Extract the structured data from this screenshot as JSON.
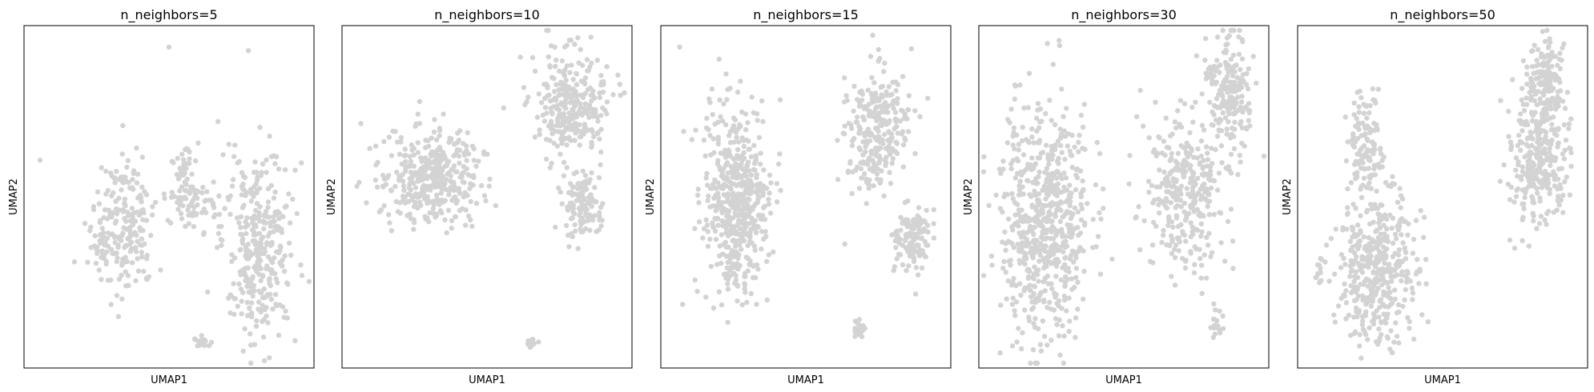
{
  "chart_data": [
    {
      "type": "scatter",
      "title": "n_neighbors=5",
      "xlabel": "UMAP1",
      "ylabel": "UMAP2",
      "xticks": [],
      "yticks": [],
      "point_color": "#d3d3d3",
      "clusters": [
        {
          "center": [
            0.35,
            0.58
          ],
          "spread": [
            0.06,
            0.14
          ],
          "n": 170
        },
        {
          "center": [
            0.26,
            0.64
          ],
          "spread": [
            0.035,
            0.06
          ],
          "n": 40
        },
        {
          "center": [
            0.58,
            0.52
          ],
          "spread": [
            0.06,
            0.05
          ],
          "n": 80
        },
        {
          "center": [
            0.55,
            0.4
          ],
          "spread": [
            0.03,
            0.03
          ],
          "n": 25
        },
        {
          "center": [
            0.82,
            0.64
          ],
          "spread": [
            0.08,
            0.18
          ],
          "n": 330
        },
        {
          "center": [
            0.62,
            0.94
          ],
          "spread": [
            0.025,
            0.01
          ],
          "n": 18
        }
      ],
      "outliers": [
        [
          0.04,
          0.39
        ],
        [
          0.5,
          0.05
        ],
        [
          0.2,
          0.58
        ],
        [
          0.47,
          0.72
        ],
        [
          0.95,
          0.42
        ]
      ]
    },
    {
      "type": "scatter",
      "title": "n_neighbors=10",
      "xlabel": "UMAP1",
      "ylabel": "UMAP2",
      "xticks": [],
      "yticks": [],
      "point_color": "#d3d3d3",
      "clusters": [
        {
          "center": [
            0.3,
            0.44
          ],
          "spread": [
            0.11,
            0.09
          ],
          "n": 380
        },
        {
          "center": [
            0.8,
            0.22
          ],
          "spread": [
            0.08,
            0.1
          ],
          "n": 300
        },
        {
          "center": [
            0.84,
            0.53
          ],
          "spread": [
            0.04,
            0.06
          ],
          "n": 110
        },
        {
          "center": [
            0.66,
            0.94
          ],
          "spread": [
            0.02,
            0.01
          ],
          "n": 14
        }
      ],
      "outliers": [
        [
          0.05,
          0.28
        ]
      ]
    },
    {
      "type": "scatter",
      "title": "n_neighbors=15",
      "xlabel": "UMAP1",
      "ylabel": "UMAP2",
      "xticks": [],
      "yticks": [],
      "point_color": "#d3d3d3",
      "clusters": [
        {
          "center": [
            0.25,
            0.52
          ],
          "spread": [
            0.07,
            0.18
          ],
          "n": 520
        },
        {
          "center": [
            0.75,
            0.3
          ],
          "spread": [
            0.07,
            0.12
          ],
          "n": 260
        },
        {
          "center": [
            0.88,
            0.62
          ],
          "spread": [
            0.04,
            0.06
          ],
          "n": 120
        },
        {
          "center": [
            0.69,
            0.91
          ],
          "spread": [
            0.012,
            0.04
          ],
          "n": 20
        }
      ],
      "outliers": [
        [
          0.05,
          0.05
        ]
      ]
    },
    {
      "type": "scatter",
      "title": "n_neighbors=30",
      "xlabel": "UMAP1",
      "ylabel": "UMAP2",
      "xticks": [],
      "yticks": [],
      "point_color": "#d3d3d3",
      "clusters": [
        {
          "center": [
            0.22,
            0.58
          ],
          "spread": [
            0.1,
            0.22
          ],
          "n": 640
        },
        {
          "center": [
            0.72,
            0.48
          ],
          "spread": [
            0.09,
            0.14
          ],
          "n": 320
        },
        {
          "center": [
            0.87,
            0.18
          ],
          "spread": [
            0.05,
            0.11
          ],
          "n": 200
        },
        {
          "center": [
            0.83,
            0.88
          ],
          "spread": [
            0.012,
            0.04
          ],
          "n": 18
        }
      ],
      "outliers": []
    },
    {
      "type": "scatter",
      "title": "n_neighbors=50",
      "xlabel": "UMAP1",
      "ylabel": "UMAP2",
      "xticks": [],
      "yticks": [],
      "point_color": "#d3d3d3",
      "clusters": [
        {
          "center": [
            0.27,
            0.72
          ],
          "spread": [
            0.09,
            0.14
          ],
          "n": 400
        },
        {
          "center": [
            0.22,
            0.35
          ],
          "spread": [
            0.04,
            0.1
          ],
          "n": 120
        },
        {
          "center": [
            0.84,
            0.38
          ],
          "spread": [
            0.07,
            0.12
          ],
          "n": 280
        },
        {
          "center": [
            0.87,
            0.17
          ],
          "spread": [
            0.04,
            0.09
          ],
          "n": 160
        },
        {
          "center": [
            0.06,
            0.72
          ],
          "spread": [
            0.012,
            0.03
          ],
          "n": 14
        }
      ],
      "outliers": [
        [
          0.74,
          0.63
        ]
      ]
    }
  ]
}
